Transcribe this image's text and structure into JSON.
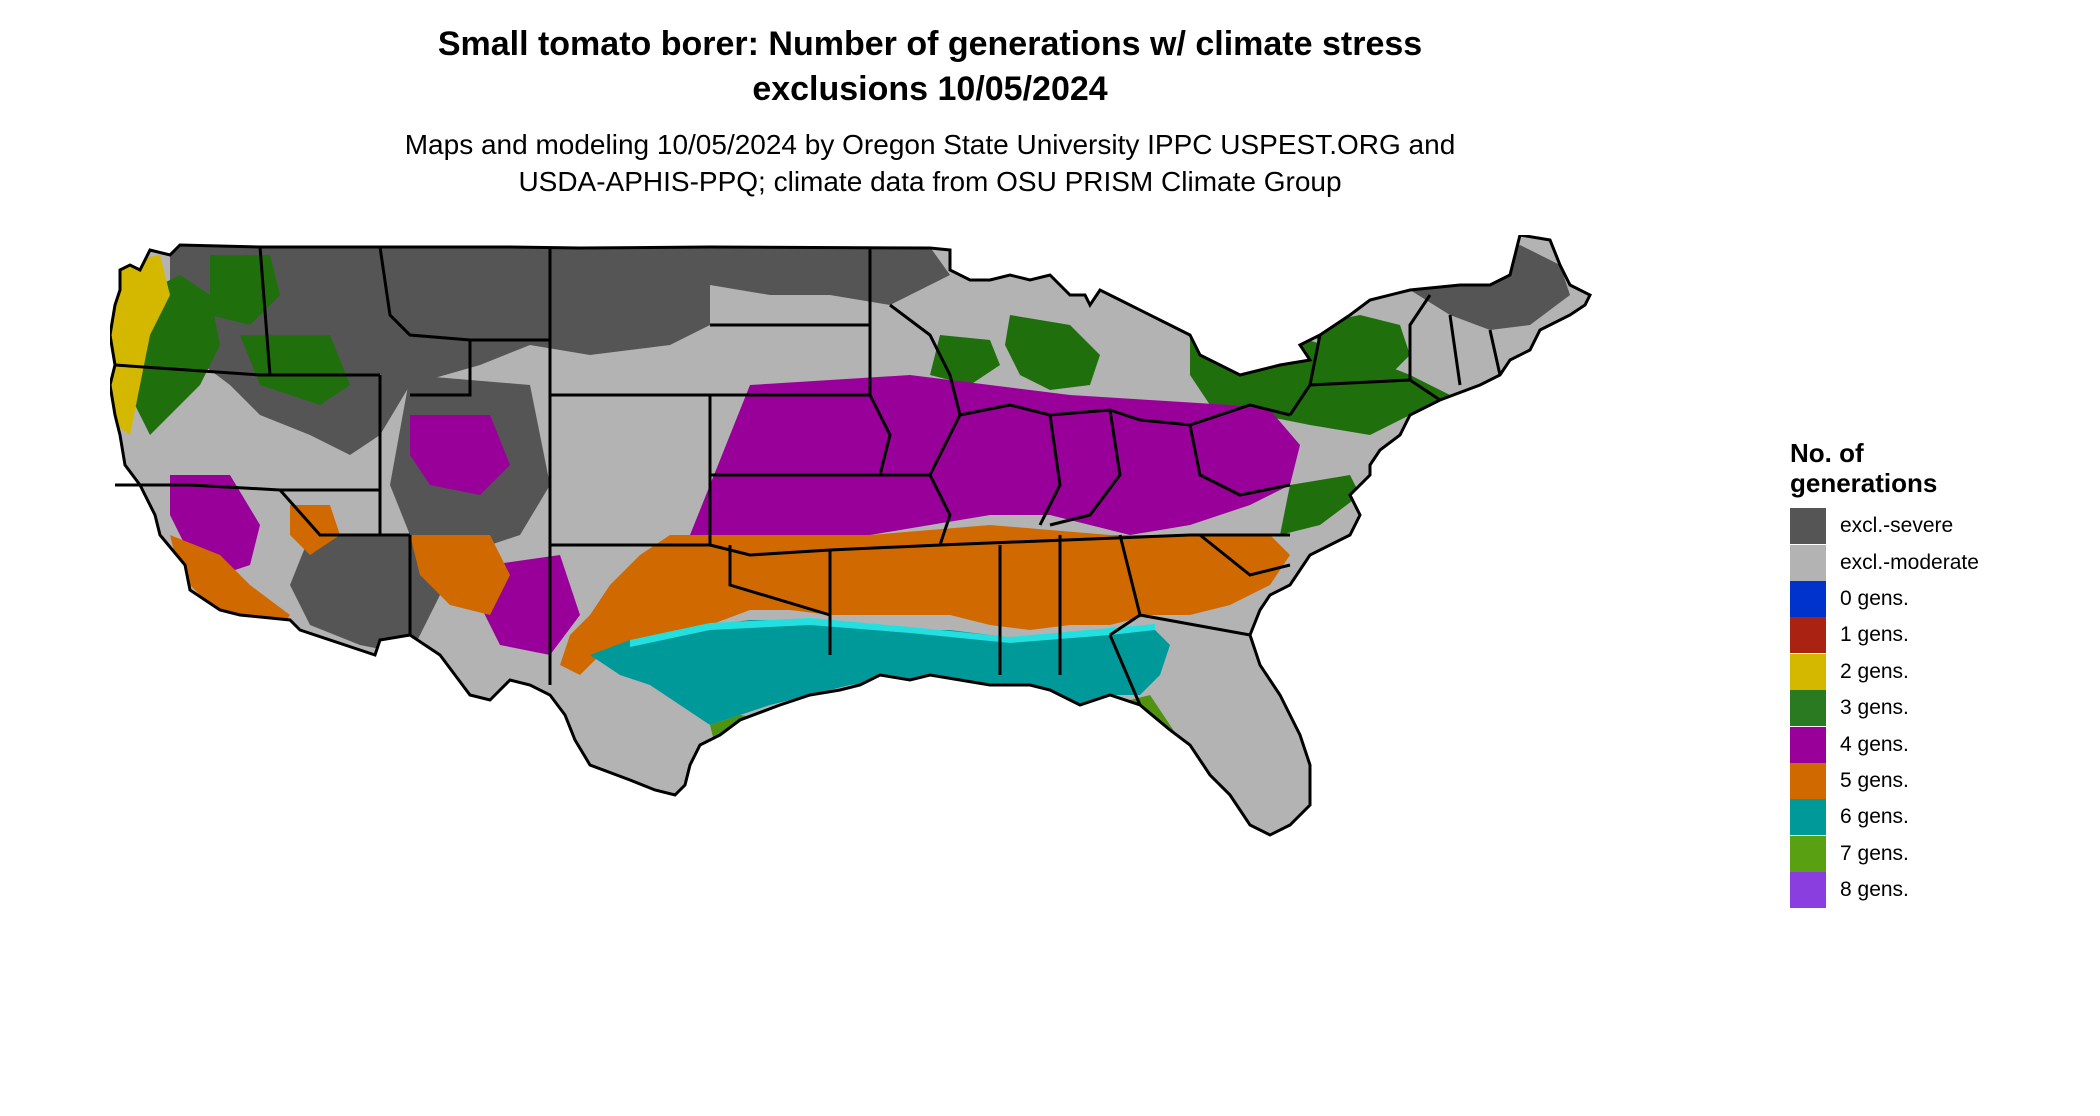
{
  "title": {
    "line1": "Small tomato borer: Number of generations w/ climate stress",
    "line2": "exclusions 10/05/2024"
  },
  "subtitle": {
    "line1": "Maps and modeling 10/05/2024 by Oregon State University IPPC USPEST.ORG and",
    "line2": "USDA-APHIS-PPQ; climate data from OSU PRISM Climate Group"
  },
  "legend": {
    "title_line1": "No. of",
    "title_line2": "generations",
    "items": [
      {
        "label": "excl.-severe",
        "color": "#555555"
      },
      {
        "label": "excl.-moderate",
        "color": "#b3b3b3"
      },
      {
        "label": "0 gens.",
        "color": "#0033cc"
      },
      {
        "label": "1 gens.",
        "color": "#aa2211"
      },
      {
        "label": "2 gens.",
        "color": "#d4b800"
      },
      {
        "label": "3 gens.",
        "color": "#2a7a22"
      },
      {
        "label": "4 gens.",
        "color": "#990099"
      },
      {
        "label": "5 gens.",
        "color": "#d06a00"
      },
      {
        "label": "6 gens.",
        "color": "#00999a"
      },
      {
        "label": "7 gens.",
        "color": "#5aa013"
      },
      {
        "label": "8 gens.",
        "color": "#8a3ee0"
      }
    ]
  },
  "map": {
    "region": "contiguous-united-states",
    "dominant_palette": {
      "severe": "#555555",
      "moderate": "#b3b3b3",
      "gens2": "#d4b800",
      "gens3": "#1f6f0c",
      "gens4": "#990099",
      "gens5": "#d06a00",
      "gens6": "#00999a",
      "gens7": "#4f9310",
      "cyan_fringe": "#22e0e0"
    }
  }
}
